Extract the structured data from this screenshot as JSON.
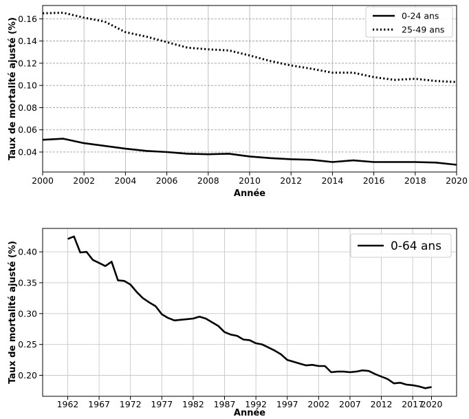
{
  "chart_data": [
    {
      "type": "line",
      "xlabel": "Année",
      "ylabel": "Taux de mortalité ajusté (%)",
      "xlim": [
        2000,
        2020
      ],
      "ylim": [
        0.022,
        0.172
      ],
      "xticks": [
        2000,
        2002,
        2004,
        2006,
        2008,
        2010,
        2012,
        2014,
        2016,
        2018,
        2020
      ],
      "yticks": [
        0.04,
        0.06,
        0.08,
        0.1,
        0.12,
        0.14,
        0.16
      ],
      "ytick_labels": [
        "0.04",
        "0.06",
        "0.08",
        "0.10",
        "0.12",
        "0.14",
        "0.16"
      ],
      "grid": true,
      "legend_position": "top-right",
      "x": [
        2000,
        2001,
        2002,
        2003,
        2004,
        2005,
        2006,
        2007,
        2008,
        2009,
        2010,
        2011,
        2012,
        2013,
        2014,
        2015,
        2016,
        2017,
        2018,
        2019,
        2020
      ],
      "series": [
        {
          "name": "0-24 ans",
          "style": "solid",
          "color": "#000000",
          "values": [
            0.051,
            0.052,
            0.048,
            0.0455,
            0.043,
            0.041,
            0.04,
            0.0385,
            0.038,
            0.0385,
            0.036,
            0.0345,
            0.0335,
            0.033,
            0.031,
            0.0325,
            0.031,
            0.031,
            0.031,
            0.0305,
            0.0285
          ]
        },
        {
          "name": "25-49 ans",
          "style": "dotted",
          "color": "#000000",
          "values": [
            0.165,
            0.1655,
            0.161,
            0.1575,
            0.148,
            0.144,
            0.139,
            0.134,
            0.1325,
            0.1315,
            0.127,
            0.122,
            0.118,
            0.115,
            0.1115,
            0.1115,
            0.1075,
            0.105,
            0.106,
            0.104,
            0.103
          ]
        }
      ]
    },
    {
      "type": "line",
      "xlabel": "Année",
      "ylabel": "Taux de mortalité ajusté (%)",
      "xlim": [
        1958,
        2024
      ],
      "ylim": [
        0.166,
        0.438
      ],
      "xticks": [
        1962,
        1967,
        1972,
        1977,
        1982,
        1987,
        1992,
        1997,
        2002,
        2007,
        2012,
        2017,
        2020
      ],
      "yticks": [
        0.2,
        0.25,
        0.3,
        0.35,
        0.4
      ],
      "ytick_labels": [
        "0.20",
        "0.25",
        "0.30",
        "0.35",
        "0.40"
      ],
      "grid": true,
      "legend_position": "top-right",
      "x": [
        1962,
        1963,
        1964,
        1965,
        1966,
        1967,
        1968,
        1969,
        1970,
        1971,
        1972,
        1973,
        1974,
        1975,
        1976,
        1977,
        1978,
        1979,
        1980,
        1981,
        1982,
        1983,
        1984,
        1985,
        1986,
        1987,
        1988,
        1989,
        1990,
        1991,
        1992,
        1993,
        1994,
        1995,
        1996,
        1997,
        1998,
        1999,
        2000,
        2001,
        2002,
        2003,
        2004,
        2005,
        2006,
        2007,
        2008,
        2009,
        2010,
        2011,
        2012,
        2013,
        2014,
        2015,
        2016,
        2017,
        2018,
        2019,
        2020
      ],
      "series": [
        {
          "name": "0-64 ans",
          "style": "solid",
          "color": "#000000",
          "values": [
            0.421,
            0.425,
            0.399,
            0.4,
            0.387,
            0.382,
            0.377,
            0.384,
            0.354,
            0.353,
            0.347,
            0.335,
            0.325,
            0.318,
            0.312,
            0.299,
            0.293,
            0.289,
            0.29,
            0.291,
            0.292,
            0.295,
            0.292,
            0.286,
            0.28,
            0.27,
            0.266,
            0.264,
            0.258,
            0.257,
            0.252,
            0.25,
            0.245,
            0.24,
            0.234,
            0.225,
            0.222,
            0.219,
            0.216,
            0.217,
            0.215,
            0.215,
            0.205,
            0.206,
            0.206,
            0.205,
            0.206,
            0.208,
            0.207,
            0.202,
            0.198,
            0.194,
            0.187,
            0.188,
            0.185,
            0.184,
            0.182,
            0.179,
            0.181
          ]
        }
      ]
    }
  ]
}
